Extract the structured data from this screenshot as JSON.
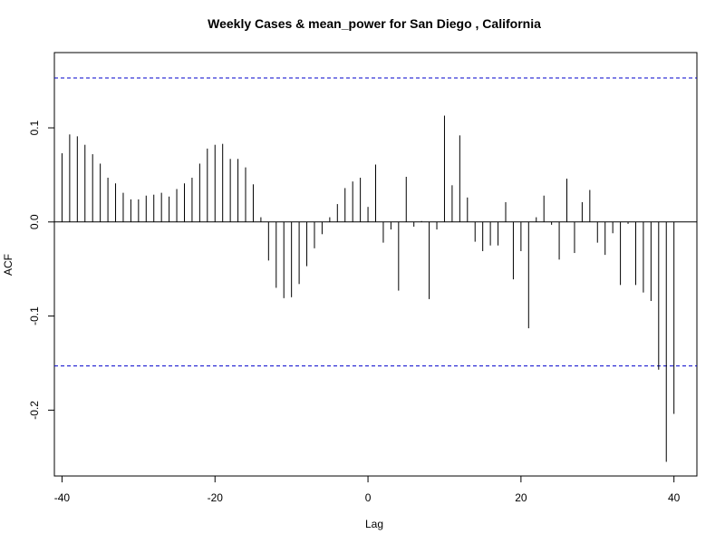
{
  "chart_data": {
    "type": "bar",
    "title": "Weekly Cases & mean_power for San Diego , California",
    "xlabel": "Lag",
    "ylabel": "ACF",
    "xlim": [
      -41,
      43
    ],
    "ylim": [
      -0.27,
      0.18
    ],
    "x_ticks": [
      -40,
      -20,
      0,
      20,
      40
    ],
    "y_ticks": [
      -0.2,
      -0.1,
      0.0,
      0.1
    ],
    "y_tick_labels": [
      "-0.2",
      "-0.1",
      "0.0",
      "0.1"
    ],
    "x_tick_labels": [
      "-40",
      "-20",
      "0",
      "20",
      "40"
    ],
    "confidence_bound": 0.153,
    "bound_color": "#0000cc",
    "bar_color": "#000000",
    "grid": false,
    "lags": [
      -40,
      -39,
      -38,
      -37,
      -36,
      -35,
      -34,
      -33,
      -32,
      -31,
      -30,
      -29,
      -28,
      -27,
      -26,
      -25,
      -24,
      -23,
      -22,
      -21,
      -20,
      -19,
      -18,
      -17,
      -16,
      -15,
      -14,
      -13,
      -12,
      -11,
      -10,
      -9,
      -8,
      -7,
      -6,
      -5,
      -4,
      -3,
      -2,
      -1,
      0,
      1,
      2,
      3,
      4,
      5,
      6,
      7,
      8,
      9,
      10,
      11,
      12,
      13,
      14,
      15,
      16,
      17,
      18,
      19,
      20,
      21,
      22,
      23,
      24,
      25,
      26,
      27,
      28,
      29,
      30,
      31,
      32,
      33,
      34,
      35,
      36,
      37,
      38,
      39,
      40
    ],
    "acf": [
      0.073,
      0.093,
      0.091,
      0.082,
      0.072,
      0.062,
      0.047,
      0.041,
      0.031,
      0.024,
      0.024,
      0.028,
      0.029,
      0.031,
      0.027,
      0.035,
      0.041,
      0.047,
      0.062,
      0.078,
      0.082,
      0.083,
      0.067,
      0.067,
      0.058,
      0.04,
      0.005,
      -0.041,
      -0.07,
      -0.081,
      -0.08,
      -0.066,
      -0.047,
      -0.028,
      -0.013,
      0.005,
      0.019,
      0.036,
      0.043,
      0.047,
      0.016,
      0.061,
      -0.022,
      -0.008,
      -0.073,
      0.048,
      -0.005,
      0.001,
      -0.082,
      -0.008,
      0.113,
      0.039,
      0.092,
      0.026,
      -0.021,
      -0.031,
      -0.025,
      -0.025,
      0.021,
      -0.061,
      -0.031,
      -0.113,
      0.005,
      0.028,
      -0.003,
      -0.04,
      0.046,
      -0.033,
      0.021,
      0.034,
      -0.022,
      -0.035,
      -0.012,
      -0.067,
      -0.002,
      -0.067,
      -0.075,
      -0.084,
      -0.157,
      -0.255,
      -0.204
    ]
  }
}
